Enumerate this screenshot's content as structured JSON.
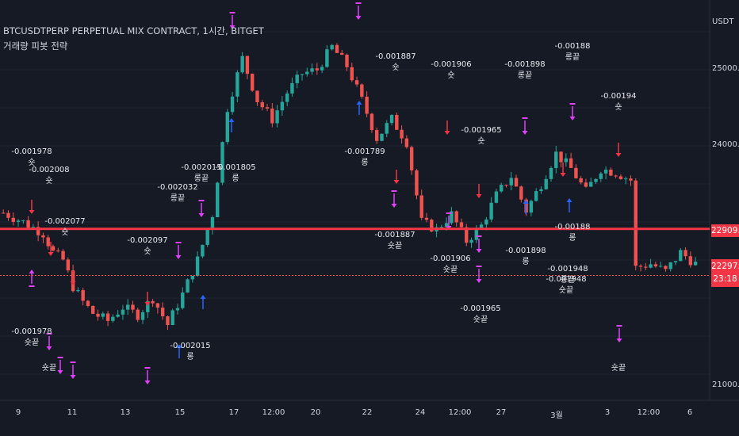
{
  "legend": {
    "symbol": "BTCUSDTPERP PERPETUAL MIX CONTRACT, 1시간, BITGET",
    "indicator": "거래량 피봇 전략"
  },
  "axis": {
    "currency": "USDT",
    "y_ticks": [
      "25000.0",
      "24000.0",
      "21000.0"
    ],
    "x_ticks": [
      "9",
      "11",
      "13",
      "15",
      "17",
      "12:00",
      "20",
      "22",
      "24",
      "12:00",
      "27",
      "3월",
      "3",
      "12:00",
      "6"
    ]
  },
  "price_tags": {
    "upper": "22909.5",
    "last": "22297.5",
    "countdown": "23:18"
  },
  "colors": {
    "background": "#161a25",
    "up_candle": "#26a69a",
    "down_candle": "#ef5350",
    "long_arrow": "#2962ff",
    "short_arrow": "#f23645",
    "exit_marker": "#e040fb",
    "upper_line": "#f23645"
  },
  "annotations": [
    {
      "value": "-0.001978",
      "word": "숏"
    },
    {
      "value": "-0.002008",
      "word": "숏"
    },
    {
      "value": "-0.002077",
      "word": "숏"
    },
    {
      "value": "-0.002097",
      "word": "숏"
    },
    {
      "value": "-0.002032",
      "word": "롱끝"
    },
    {
      "value": "-0.002015",
      "word": "롱끝"
    },
    {
      "value": "-0.001887",
      "word": "숏"
    },
    {
      "value": "-0.001906",
      "word": "숏"
    },
    {
      "value": "-0.001965",
      "word": "숏"
    },
    {
      "value": "-0.001898",
      "word": "롱끝"
    },
    {
      "value": "-0.00188",
      "word": "롱끝"
    },
    {
      "value": "-0.00194",
      "word": "숏"
    },
    {
      "value": "-0.001948",
      "word": "롱끝"
    },
    {
      "value": "-0.001978",
      "word": "숏끝"
    },
    {
      "value": "-0.002015",
      "word": "롱"
    },
    {
      "value": "-0.001805",
      "word": "롱"
    },
    {
      "value": "-0.001789",
      "word": "롱"
    },
    {
      "value": "-0.001887",
      "word": "숏끝"
    },
    {
      "value": "-0.001906",
      "word": "숏끝"
    },
    {
      "value": "-0.001965",
      "word": "숏끝"
    },
    {
      "value": "-0.001898",
      "word": "롱"
    },
    {
      "value": "-0.00188",
      "word": "롱"
    },
    {
      "value": "-0.001948",
      "word": "숏끝"
    },
    {
      "value": "숏끝",
      "word": ""
    },
    {
      "value": "숏끝",
      "word": ""
    }
  ],
  "chart_data": {
    "type": "candlestick",
    "y_unit": "USDT",
    "reference_lines": [
      22909.5,
      22297.5
    ],
    "close_path": [
      [
        0,
        23120
      ],
      [
        4,
        23000
      ],
      [
        8,
        22850
      ],
      [
        10,
        22600
      ],
      [
        12,
        22500
      ],
      [
        14,
        22150
      ],
      [
        16,
        21950
      ],
      [
        18,
        21800
      ],
      [
        21,
        21700
      ],
      [
        24,
        21880
      ],
      [
        27,
        21780
      ],
      [
        30,
        22000
      ],
      [
        33,
        21650
      ],
      [
        36,
        22050
      ],
      [
        39,
        22500
      ],
      [
        42,
        23100
      ],
      [
        45,
        24500
      ],
      [
        48,
        25150
      ],
      [
        51,
        24600
      ],
      [
        54,
        24350
      ],
      [
        57,
        24700
      ],
      [
        60,
        24950
      ],
      [
        63,
        25000
      ],
      [
        66,
        25300
      ],
      [
        69,
        25050
      ],
      [
        72,
        24600
      ],
      [
        75,
        24100
      ],
      [
        78,
        24350
      ],
      [
        81,
        24050
      ],
      [
        84,
        23000
      ],
      [
        87,
        22900
      ],
      [
        90,
        23100
      ],
      [
        93,
        22750
      ],
      [
        96,
        22950
      ],
      [
        99,
        23350
      ],
      [
        102,
        23600
      ],
      [
        105,
        23150
      ],
      [
        108,
        23500
      ],
      [
        111,
        23900
      ],
      [
        114,
        23700
      ],
      [
        117,
        23400
      ],
      [
        120,
        23700
      ],
      [
        123,
        23650
      ],
      [
        126,
        23550
      ],
      [
        127,
        22400
      ],
      [
        130,
        22450
      ],
      [
        133,
        22350
      ],
      [
        136,
        22600
      ],
      [
        139,
        22450
      ]
    ]
  }
}
